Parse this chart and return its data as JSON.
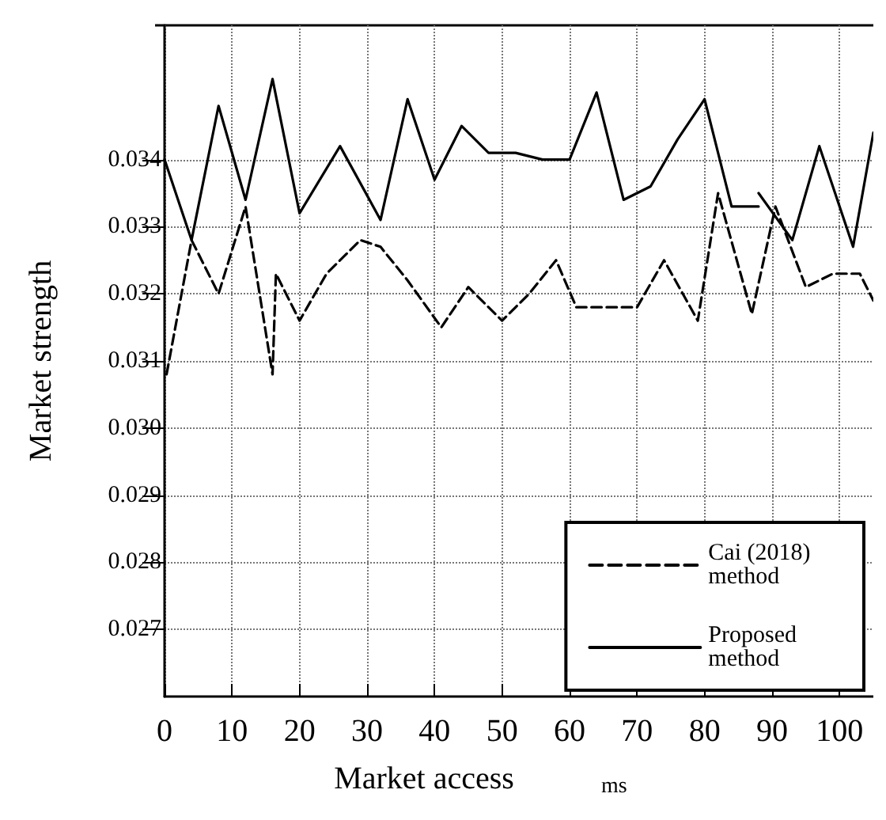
{
  "chart_data": {
    "type": "line",
    "xlabel": "Market access",
    "ylabel": "Market strength",
    "annotations": [
      "ms"
    ],
    "xlim": [
      0,
      105
    ],
    "xticks": [
      0,
      10,
      20,
      30,
      40,
      50,
      60,
      70,
      80,
      90,
      100
    ],
    "ylim": [
      0.026,
      0.036
    ],
    "yticks": [
      0.027,
      0.028,
      0.029,
      {
        "value": 0.03,
        "label": "0.030"
      },
      0.031,
      0.032,
      0.033,
      0.034
    ],
    "grid": true,
    "legend": "bottom right",
    "marker": "none",
    "series": [
      {
        "name": "Cai (2018) method",
        "color": "#000000",
        "line_style": "dashed",
        "x": [
          0.3,
          4,
          8,
          12,
          16,
          16.5,
          20,
          24,
          29,
          32,
          36,
          41,
          45,
          50,
          54,
          58,
          61,
          66,
          70,
          74,
          79,
          82,
          87,
          90.5,
          95,
          99,
          103,
          105
        ],
        "values": [
          0.0308,
          0.0328,
          0.032,
          0.0333,
          0.0308,
          0.0323,
          0.0316,
          0.0323,
          0.0328,
          0.0327,
          0.0322,
          0.0315,
          0.0321,
          0.0316,
          0.032,
          0.0325,
          0.0318,
          0.0318,
          0.0318,
          0.0325,
          0.0316,
          0.0335,
          0.0317,
          0.0333,
          0.0321,
          0.0323,
          0.0323,
          0.0319
        ]
      },
      {
        "name": "Proposed method",
        "color": "#000000",
        "line_style": "solid",
        "x": [
          0,
          4,
          8,
          12,
          16,
          20,
          26,
          32,
          36,
          40,
          44,
          48,
          52,
          56,
          60,
          64,
          68,
          72,
          76,
          80,
          84,
          88,
          null,
          88,
          93,
          97,
          102,
          105
        ],
        "values": [
          0.034,
          0.0328,
          0.0348,
          0.0334,
          0.0352,
          0.0332,
          0.0342,
          0.0331,
          0.0349,
          0.0337,
          0.0345,
          0.0341,
          0.0341,
          0.034,
          0.034,
          0.035,
          0.0334,
          0.0336,
          0.0343,
          0.0349,
          0.0333,
          0.0333,
          null,
          0.0335,
          0.0328,
          0.0342,
          0.0327,
          0.0344
        ]
      }
    ]
  }
}
